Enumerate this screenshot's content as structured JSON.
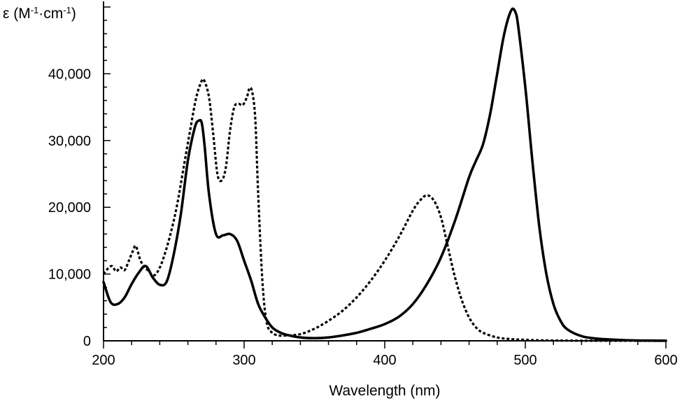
{
  "chart_data": {
    "type": "line",
    "title": "",
    "xlabel": "Wavelength (nm)",
    "ylabel_parts": [
      "ε (M",
      "-1",
      "·cm",
      "-1",
      ")"
    ],
    "xlim": [
      200,
      600
    ],
    "ylim": [
      0,
      50000
    ],
    "xticks": [
      200,
      300,
      400,
      500,
      600
    ],
    "xtick_labels": [
      "200",
      "300",
      "400",
      "500",
      "600"
    ],
    "yticks": [
      0,
      10000,
      20000,
      30000,
      40000
    ],
    "ytick_labels": [
      "0",
      "10,000",
      "20,000",
      "30,000",
      "40,000"
    ],
    "grid": false,
    "series": [
      {
        "style": "solid",
        "color": "#000000",
        "x": [
          200,
          205,
          210,
          215,
          220,
          225,
          230,
          235,
          240,
          245,
          250,
          255,
          260,
          265,
          268,
          270,
          272,
          275,
          280,
          285,
          290,
          295,
          300,
          305,
          310,
          315,
          320,
          325,
          330,
          340,
          350,
          360,
          370,
          380,
          390,
          400,
          410,
          420,
          430,
          440,
          450,
          460,
          465,
          470,
          475,
          480,
          485,
          490,
          493,
          495,
          500,
          505,
          510,
          515,
          520,
          525,
          530,
          540,
          550,
          560,
          570,
          580,
          590,
          600
        ],
        "y": [
          8800,
          5800,
          5500,
          6500,
          8500,
          10200,
          11200,
          9500,
          8400,
          8900,
          13000,
          19000,
          27000,
          32000,
          33000,
          32500,
          29000,
          22000,
          16000,
          15800,
          16000,
          15000,
          12000,
          9000,
          5500,
          3500,
          2000,
          1300,
          900,
          500,
          400,
          500,
          800,
          1200,
          1800,
          2500,
          3600,
          5500,
          8500,
          12500,
          18000,
          24500,
          27000,
          29500,
          34000,
          40000,
          46000,
          49500,
          49200,
          47000,
          38000,
          27000,
          17000,
          10000,
          5500,
          3000,
          1700,
          700,
          350,
          200,
          100,
          50,
          30,
          20
        ]
      },
      {
        "style": "dotted",
        "color": "#000000",
        "x": [
          200,
          203,
          206,
          209,
          212,
          215,
          218,
          221,
          223,
          226,
          229,
          232,
          235,
          238,
          242,
          247,
          252,
          257,
          262,
          266,
          270,
          272,
          275,
          278,
          281,
          284,
          287,
          290,
          293,
          296,
          299,
          302,
          304,
          306,
          308,
          310,
          313,
          316,
          320,
          325,
          330,
          340,
          350,
          360,
          370,
          380,
          390,
          400,
          410,
          420,
          425,
          430,
          435,
          440,
          445,
          450,
          455,
          460,
          465,
          470,
          480,
          490,
          500,
          510,
          520,
          530,
          550,
          600
        ],
        "y": [
          10000,
          10800,
          11200,
          10400,
          11000,
          10600,
          12000,
          13500,
          14200,
          12200,
          11000,
          10500,
          9800,
          10200,
          12000,
          15500,
          20000,
          26000,
          32000,
          36500,
          39000,
          38800,
          36500,
          31000,
          25000,
          24000,
          26000,
          31500,
          35000,
          35500,
          35300,
          36500,
          37900,
          37000,
          33000,
          22000,
          9000,
          2800,
          1200,
          800,
          800,
          1000,
          1800,
          3000,
          4500,
          6500,
          9000,
          12000,
          15500,
          19500,
          21000,
          21800,
          21000,
          18500,
          14000,
          9500,
          6000,
          3500,
          2000,
          1200,
          500,
          250,
          150,
          80,
          50,
          30,
          15,
          0
        ]
      }
    ]
  }
}
